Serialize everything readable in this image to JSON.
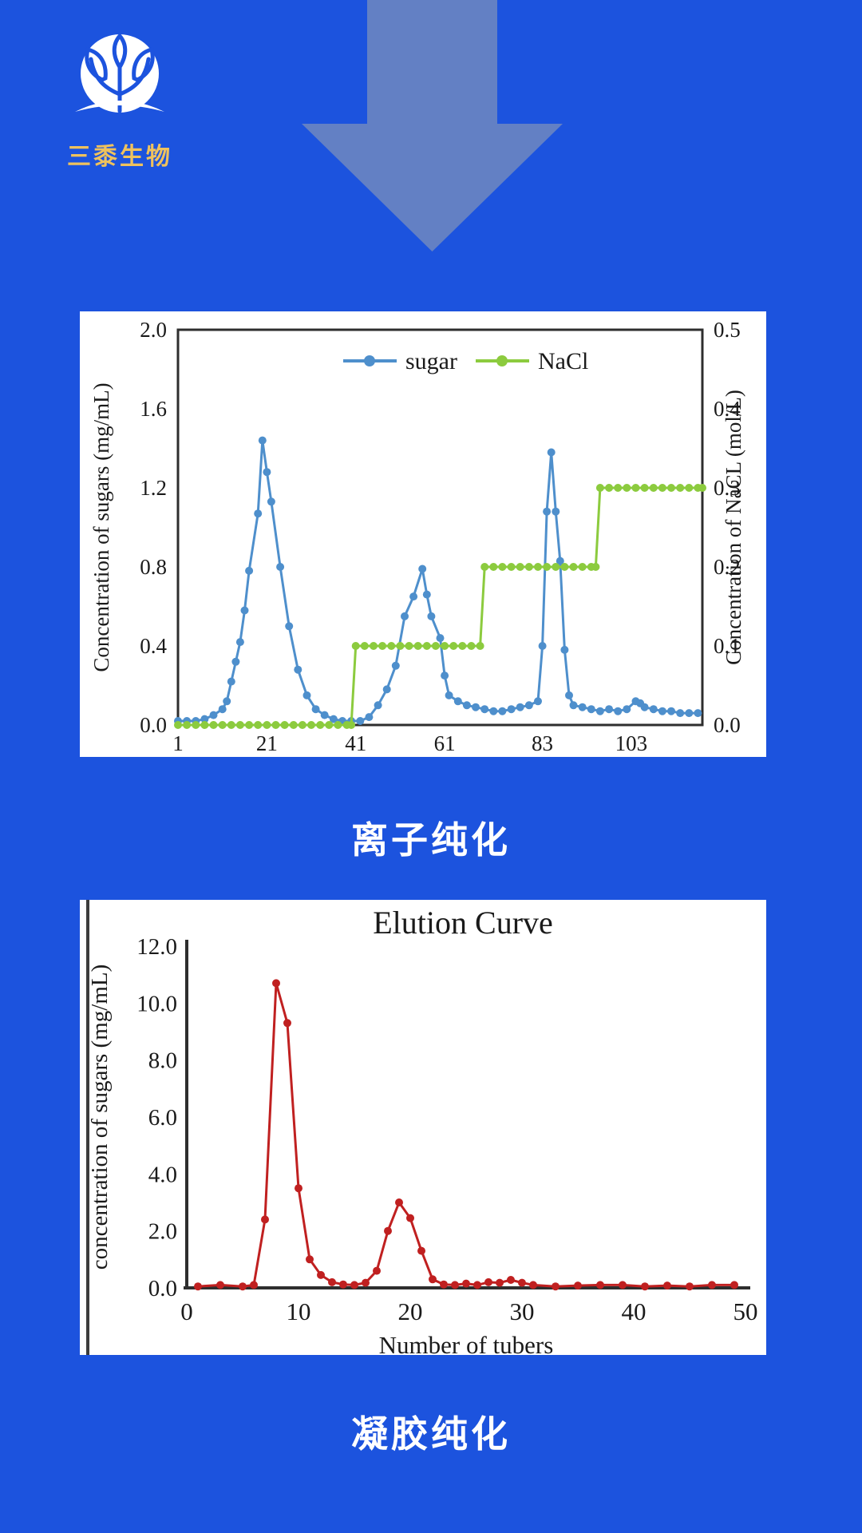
{
  "page": {
    "background_color": "#1C53DE",
    "arrow_color": "#6380C4",
    "panel_color": "#FFFFFF"
  },
  "logo": {
    "name": "三黍生物",
    "text_color": "#EFC25D",
    "icon": "tree-in-circle-icon",
    "icon_color": "#FFFFFF"
  },
  "sections": [
    {
      "caption": "离子纯化"
    },
    {
      "caption": "凝胶纯化"
    }
  ],
  "chart_data": [
    {
      "type": "line",
      "title": "",
      "xlabel": "",
      "ylabel_left": "Concentration of sugars (mg/mL)",
      "ylabel_right": "Concentration of  NaCL (mol/L)",
      "legend": [
        {
          "label": "sugar",
          "color": "#4E8FCC"
        },
        {
          "label": "NaCl",
          "color": "#8CCB3E"
        }
      ],
      "legend_position": "top-center",
      "grid": false,
      "xlim": [
        1,
        119
      ],
      "x_ticks": [
        1,
        21,
        41,
        61,
        83,
        103
      ],
      "ylim_left": [
        0.0,
        2.0
      ],
      "y_ticks_left": [
        "2.0",
        "1.6",
        "1.2",
        "0.8",
        "0.4",
        "0.0"
      ],
      "ylim_right": [
        0.0,
        0.5
      ],
      "y_ticks_right": [
        "0.5",
        "0.4",
        "0.3",
        "0.2",
        "0.1",
        "0.0"
      ],
      "series": [
        {
          "name": "sugar",
          "axis": "left",
          "color": "#4E8FCC",
          "points": [
            [
              1,
              0.02
            ],
            [
              3,
              0.02
            ],
            [
              5,
              0.02
            ],
            [
              7,
              0.03
            ],
            [
              9,
              0.05
            ],
            [
              11,
              0.08
            ],
            [
              12,
              0.12
            ],
            [
              13,
              0.22
            ],
            [
              14,
              0.32
            ],
            [
              15,
              0.42
            ],
            [
              16,
              0.58
            ],
            [
              17,
              0.78
            ],
            [
              19,
              1.07
            ],
            [
              20,
              1.44
            ],
            [
              21,
              1.28
            ],
            [
              22,
              1.13
            ],
            [
              24,
              0.8
            ],
            [
              26,
              0.5
            ],
            [
              28,
              0.28
            ],
            [
              30,
              0.15
            ],
            [
              32,
              0.08
            ],
            [
              34,
              0.05
            ],
            [
              36,
              0.03
            ],
            [
              38,
              0.02
            ],
            [
              40,
              0.02
            ],
            [
              42,
              0.02
            ],
            [
              44,
              0.04
            ],
            [
              46,
              0.1
            ],
            [
              48,
              0.18
            ],
            [
              50,
              0.3
            ],
            [
              52,
              0.55
            ],
            [
              54,
              0.65
            ],
            [
              56,
              0.79
            ],
            [
              57,
              0.66
            ],
            [
              58,
              0.55
            ],
            [
              60,
              0.44
            ],
            [
              61,
              0.25
            ],
            [
              62,
              0.15
            ],
            [
              64,
              0.12
            ],
            [
              66,
              0.1
            ],
            [
              68,
              0.09
            ],
            [
              70,
              0.08
            ],
            [
              72,
              0.07
            ],
            [
              74,
              0.07
            ],
            [
              76,
              0.08
            ],
            [
              78,
              0.09
            ],
            [
              80,
              0.1
            ],
            [
              82,
              0.12
            ],
            [
              83,
              0.4
            ],
            [
              84,
              1.08
            ],
            [
              85,
              1.38
            ],
            [
              86,
              1.08
            ],
            [
              87,
              0.83
            ],
            [
              88,
              0.38
            ],
            [
              89,
              0.15
            ],
            [
              90,
              0.1
            ],
            [
              92,
              0.09
            ],
            [
              94,
              0.08
            ],
            [
              96,
              0.07
            ],
            [
              98,
              0.08
            ],
            [
              100,
              0.07
            ],
            [
              102,
              0.08
            ],
            [
              104,
              0.12
            ],
            [
              105,
              0.11
            ],
            [
              106,
              0.09
            ],
            [
              108,
              0.08
            ],
            [
              110,
              0.07
            ],
            [
              112,
              0.07
            ],
            [
              114,
              0.06
            ],
            [
              116,
              0.06
            ],
            [
              118,
              0.06
            ]
          ]
        },
        {
          "name": "NaCl",
          "axis": "right",
          "color": "#8CCB3E",
          "points": [
            [
              1,
              0
            ],
            [
              3,
              0
            ],
            [
              5,
              0
            ],
            [
              7,
              0
            ],
            [
              9,
              0
            ],
            [
              11,
              0
            ],
            [
              13,
              0
            ],
            [
              15,
              0
            ],
            [
              17,
              0
            ],
            [
              19,
              0
            ],
            [
              21,
              0
            ],
            [
              23,
              0
            ],
            [
              25,
              0
            ],
            [
              27,
              0
            ],
            [
              29,
              0
            ],
            [
              31,
              0
            ],
            [
              33,
              0
            ],
            [
              35,
              0
            ],
            [
              37,
              0
            ],
            [
              39,
              0
            ],
            [
              40,
              0
            ],
            [
              41,
              0.1
            ],
            [
              43,
              0.1
            ],
            [
              45,
              0.1
            ],
            [
              47,
              0.1
            ],
            [
              49,
              0.1
            ],
            [
              51,
              0.1
            ],
            [
              53,
              0.1
            ],
            [
              55,
              0.1
            ],
            [
              57,
              0.1
            ],
            [
              59,
              0.1
            ],
            [
              61,
              0.1
            ],
            [
              63,
              0.1
            ],
            [
              65,
              0.1
            ],
            [
              67,
              0.1
            ],
            [
              69,
              0.1
            ],
            [
              70,
              0.2
            ],
            [
              72,
              0.2
            ],
            [
              74,
              0.2
            ],
            [
              76,
              0.2
            ],
            [
              78,
              0.2
            ],
            [
              80,
              0.2
            ],
            [
              82,
              0.2
            ],
            [
              84,
              0.2
            ],
            [
              86,
              0.2
            ],
            [
              88,
              0.2
            ],
            [
              90,
              0.2
            ],
            [
              92,
              0.2
            ],
            [
              94,
              0.2
            ],
            [
              95,
              0.2
            ],
            [
              96,
              0.3
            ],
            [
              98,
              0.3
            ],
            [
              100,
              0.3
            ],
            [
              102,
              0.3
            ],
            [
              104,
              0.3
            ],
            [
              106,
              0.3
            ],
            [
              108,
              0.3
            ],
            [
              110,
              0.3
            ],
            [
              112,
              0.3
            ],
            [
              114,
              0.3
            ],
            [
              116,
              0.3
            ],
            [
              118,
              0.3
            ],
            [
              119,
              0.3
            ]
          ]
        }
      ]
    },
    {
      "type": "line",
      "title": "Elution Curve",
      "xlabel": "Number of tubers",
      "ylabel": "concentration of sugars (mg/mL)",
      "grid": false,
      "legend_position": "none",
      "xlim": [
        0,
        50
      ],
      "x_ticks": [
        0,
        10,
        20,
        30,
        40,
        50
      ],
      "ylim": [
        0.0,
        12.0
      ],
      "y_ticks": [
        "12.0",
        "10.0",
        "8.0",
        "6.0",
        "4.0",
        "2.0",
        "0.0"
      ],
      "series": [
        {
          "name": "sugars",
          "axis": "left",
          "color": "#C02020",
          "points": [
            [
              1,
              0.05
            ],
            [
              3,
              0.1
            ],
            [
              5,
              0.05
            ],
            [
              6,
              0.1
            ],
            [
              7,
              2.4
            ],
            [
              8,
              10.7
            ],
            [
              9,
              9.3
            ],
            [
              10,
              3.5
            ],
            [
              11,
              1.0
            ],
            [
              12,
              0.45
            ],
            [
              13,
              0.2
            ],
            [
              14,
              0.12
            ],
            [
              15,
              0.1
            ],
            [
              16,
              0.18
            ],
            [
              17,
              0.6
            ],
            [
              18,
              2.0
            ],
            [
              19,
              3.0
            ],
            [
              20,
              2.45
            ],
            [
              21,
              1.3
            ],
            [
              22,
              0.3
            ],
            [
              23,
              0.12
            ],
            [
              24,
              0.1
            ],
            [
              25,
              0.15
            ],
            [
              26,
              0.1
            ],
            [
              27,
              0.2
            ],
            [
              28,
              0.18
            ],
            [
              29,
              0.28
            ],
            [
              30,
              0.18
            ],
            [
              31,
              0.1
            ],
            [
              33,
              0.05
            ],
            [
              35,
              0.08
            ],
            [
              37,
              0.1
            ],
            [
              39,
              0.1
            ],
            [
              41,
              0.05
            ],
            [
              43,
              0.08
            ],
            [
              45,
              0.05
            ],
            [
              47,
              0.1
            ],
            [
              49,
              0.1
            ]
          ]
        }
      ]
    }
  ]
}
